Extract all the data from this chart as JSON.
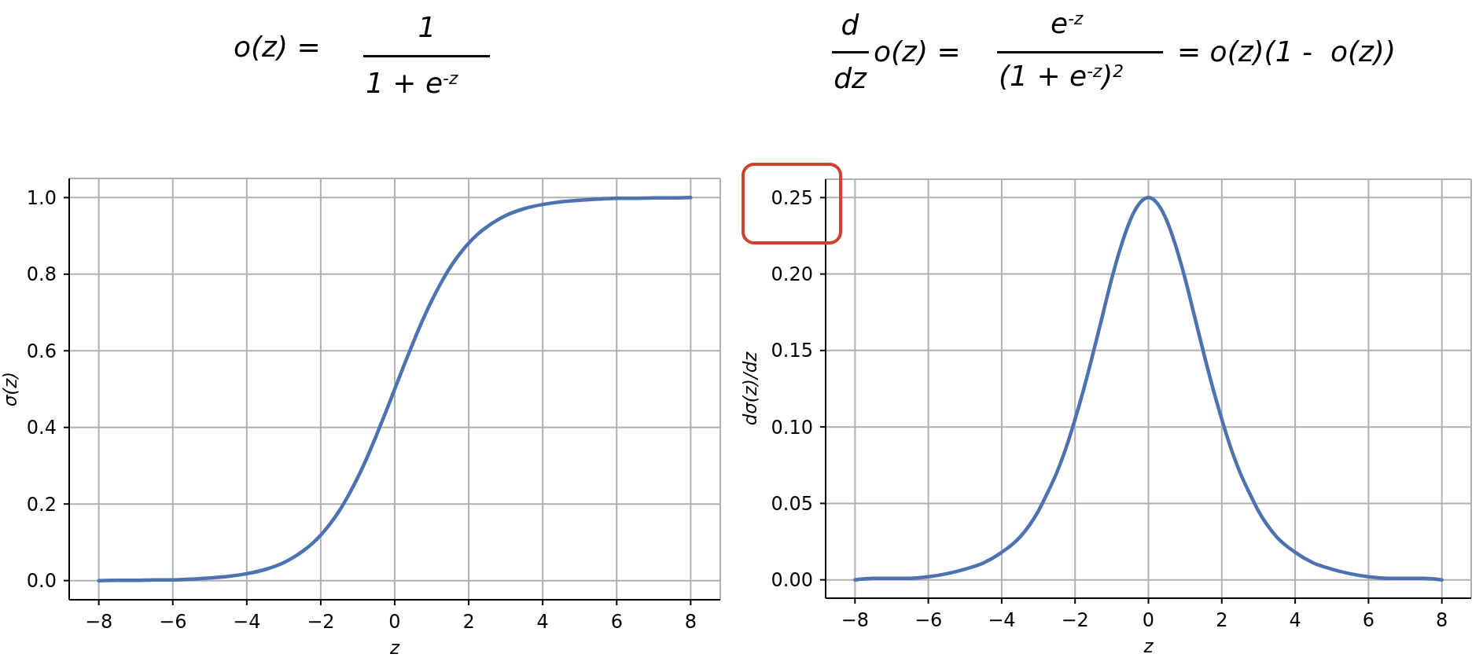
{
  "chart_data": [
    {
      "type": "line",
      "annotations": [
        "o(z) =",
        "1",
        "1 + e$^{-z}$"
      ],
      "xlabel": "z",
      "ylabel": "σ(z)",
      "color": "#4c72b0",
      "x": [
        -8,
        -7.5,
        -7,
        -6.5,
        -6,
        -5.5,
        -5,
        -4.5,
        -4,
        -3.5,
        -3,
        -2.75,
        -2.5,
        -2.25,
        -2,
        -1.75,
        -1.5,
        -1.25,
        -1,
        -0.75,
        -0.5,
        -0.25,
        0,
        0.25,
        0.5,
        0.75,
        1,
        1.25,
        1.5,
        1.75,
        2,
        2.25,
        2.5,
        2.75,
        3,
        3.5,
        4,
        4.5,
        5,
        5.5,
        6,
        6.5,
        7,
        7.5,
        8
      ],
      "values": [
        0.0,
        0.001,
        0.001,
        0.002,
        0.002,
        0.004,
        0.007,
        0.011,
        0.018,
        0.029,
        0.047,
        0.06,
        0.076,
        0.095,
        0.119,
        0.148,
        0.182,
        0.223,
        0.269,
        0.321,
        0.378,
        0.438,
        0.5,
        0.562,
        0.622,
        0.679,
        0.731,
        0.777,
        0.818,
        0.852,
        0.881,
        0.905,
        0.924,
        0.94,
        0.953,
        0.971,
        0.982,
        0.989,
        0.993,
        0.996,
        0.998,
        0.998,
        0.999,
        0.999,
        1.0
      ],
      "xlim": [
        -8.8,
        8.8
      ],
      "ylim": [
        -0.05,
        1.05
      ],
      "xticks": [
        {
          "value": -8,
          "label": "−8"
        },
        {
          "value": -6,
          "label": "−6"
        },
        {
          "value": -4,
          "label": "−4"
        },
        {
          "value": -2,
          "label": "−2"
        },
        0,
        2,
        4,
        6,
        8
      ],
      "yticks": [
        {
          "value": 0,
          "label": "0.0"
        },
        0.2,
        0.4,
        0.6,
        0.8,
        {
          "value": 1,
          "label": "1.0"
        }
      ],
      "grid": true
    },
    {
      "type": "line",
      "annotations": [
        "d",
        "dz",
        "o(z) =",
        "e$^{-z}$",
        "(1 + e$^{-z}$)$^{2}$",
        "= o(z)(1 -  o(z))"
      ],
      "xlabel": "z",
      "ylabel": "dσ(z)/dz",
      "color": "#4c72b0",
      "x": [
        -8,
        -7.5,
        -7,
        -6.5,
        -6,
        -5.5,
        -5,
        -4.5,
        -4,
        -3.5,
        -3,
        -2.75,
        -2.5,
        -2.25,
        -2,
        -1.75,
        -1.5,
        -1.25,
        -1,
        -0.75,
        -0.5,
        -0.25,
        0,
        0.25,
        0.5,
        0.75,
        1,
        1.25,
        1.5,
        1.75,
        2,
        2.25,
        2.5,
        2.75,
        3,
        3.5,
        4,
        4.5,
        5,
        5.5,
        6,
        6.5,
        7,
        7.5,
        8
      ],
      "values": [
        0.0,
        0.001,
        0.001,
        0.001,
        0.002,
        0.004,
        0.007,
        0.011,
        0.018,
        0.028,
        0.045,
        0.057,
        0.07,
        0.086,
        0.105,
        0.126,
        0.149,
        0.173,
        0.197,
        0.218,
        0.235,
        0.246,
        0.25,
        0.246,
        0.235,
        0.218,
        0.197,
        0.173,
        0.149,
        0.126,
        0.105,
        0.086,
        0.07,
        0.057,
        0.045,
        0.028,
        0.018,
        0.011,
        0.007,
        0.004,
        0.002,
        0.001,
        0.001,
        0.001,
        0.0
      ],
      "xlim": [
        -8.8,
        8.8
      ],
      "ylim": [
        -0.012,
        0.262
      ],
      "xticks": [
        {
          "value": -8,
          "label": "−8"
        },
        {
          "value": -6,
          "label": "−6"
        },
        {
          "value": -4,
          "label": "−4"
        },
        {
          "value": -2,
          "label": "−2"
        },
        0,
        2,
        4,
        6,
        8
      ],
      "yticks": [
        {
          "value": 0,
          "label": "0.00"
        },
        0.05,
        {
          "value": 0.1,
          "label": "0.10"
        },
        0.15,
        {
          "value": 0.2,
          "label": "0.20"
        },
        0.25
      ],
      "grid": true
    }
  ]
}
